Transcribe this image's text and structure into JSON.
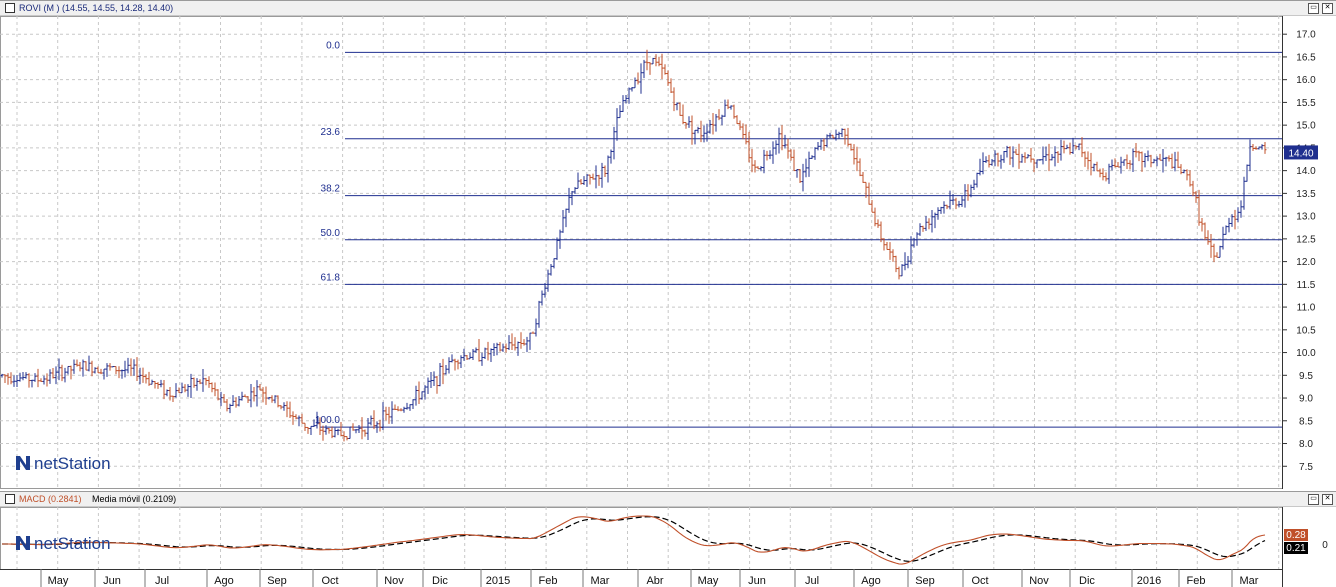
{
  "main_panel": {
    "title": "ROVI (M ) (14.55, 14.55, 14.28, 14.40)",
    "logo": "netStation",
    "price_label": "14.40",
    "colors": {
      "up": "#1f2f8f",
      "down": "#c0502a",
      "grid": "#c8c8c8",
      "fib": "#1f2f8f",
      "price_box": "#1f2f8f"
    }
  },
  "macd_panel": {
    "title_macd": "MACD (0.2841)",
    "title_signal": "Media móvil (0.2109)",
    "logo": "netStation",
    "macd_label": "0.28",
    "signal_label": "0.21",
    "zero_label": "0",
    "colors": {
      "macd": "#c0502a",
      "signal": "#000000"
    }
  },
  "chart_data": [
    {
      "type": "ohlc",
      "series": [
        {
          "name": "ROVI"
        }
      ],
      "y_ticks": [
        "7.5",
        "8.0",
        "8.5",
        "9.0",
        "9.5",
        "10.0",
        "10.5",
        "11.0",
        "11.5",
        "12.0",
        "12.5",
        "13.0",
        "13.5",
        "14.0",
        "14.5",
        "15.0",
        "15.5",
        "16.0",
        "16.5",
        "17.0"
      ],
      "ylim": [
        7.0,
        17.4
      ],
      "x_labels": [
        "May",
        "Jun",
        "Jul",
        "Ago",
        "Sep",
        "Oct",
        "Nov",
        "Dic",
        "2015",
        "Feb",
        "Mar",
        "Abr",
        "May",
        "Jun",
        "Jul",
        "Ago",
        "Sep",
        "Oct",
        "Nov",
        "Dic",
        "2016",
        "Feb",
        "Mar"
      ],
      "fibonacci": [
        {
          "label": "0.0",
          "value": 16.6
        },
        {
          "label": "23.6",
          "value": 14.7
        },
        {
          "label": "38.2",
          "value": 13.45
        },
        {
          "label": "50.0",
          "value": 12.48
        },
        {
          "label": "61.8",
          "value": 11.5
        },
        {
          "label": "100.0",
          "value": 8.36
        }
      ],
      "last_close": 14.4,
      "grid": true,
      "approx_path": [
        [
          0,
          9.5
        ],
        [
          40,
          9.4
        ],
        [
          80,
          9.7
        ],
        [
          135,
          9.6
        ],
        [
          170,
          9.1
        ],
        [
          205,
          9.4
        ],
        [
          225,
          8.8
        ],
        [
          260,
          9.2
        ],
        [
          305,
          8.4
        ],
        [
          340,
          8.2
        ],
        [
          370,
          8.4
        ],
        [
          410,
          8.9
        ],
        [
          435,
          9.4
        ],
        [
          455,
          9.9
        ],
        [
          490,
          10.0
        ],
        [
          530,
          10.3
        ],
        [
          545,
          11.5
        ],
        [
          560,
          12.6
        ],
        [
          572,
          13.6
        ],
        [
          605,
          14.0
        ],
        [
          620,
          15.3
        ],
        [
          635,
          16.0
        ],
        [
          650,
          16.5
        ],
        [
          665,
          16.1
        ],
        [
          680,
          15.2
        ],
        [
          700,
          14.8
        ],
        [
          730,
          15.5
        ],
        [
          755,
          14.0
        ],
        [
          780,
          14.8
        ],
        [
          800,
          13.8
        ],
        [
          820,
          14.6
        ],
        [
          845,
          14.9
        ],
        [
          860,
          13.9
        ],
        [
          880,
          12.6
        ],
        [
          900,
          11.7
        ],
        [
          915,
          12.6
        ],
        [
          940,
          13.2
        ],
        [
          965,
          13.4
        ],
        [
          985,
          14.2
        ],
        [
          1005,
          14.4
        ],
        [
          1040,
          14.3
        ],
        [
          1080,
          14.5
        ],
        [
          1100,
          13.9
        ],
        [
          1130,
          14.3
        ],
        [
          1170,
          14.2
        ],
        [
          1190,
          13.8
        ],
        [
          1205,
          12.5
        ],
        [
          1215,
          12.0
        ],
        [
          1230,
          13.0
        ],
        [
          1240,
          13.1
        ],
        [
          1250,
          14.6
        ],
        [
          1265,
          14.4
        ]
      ]
    },
    {
      "type": "line",
      "series": [
        {
          "name": "MACD"
        },
        {
          "name": "Media móvil"
        }
      ],
      "zero_line": 0,
      "last_values": {
        "MACD": 0.2841,
        "Media móvil": 0.2109
      }
    }
  ]
}
